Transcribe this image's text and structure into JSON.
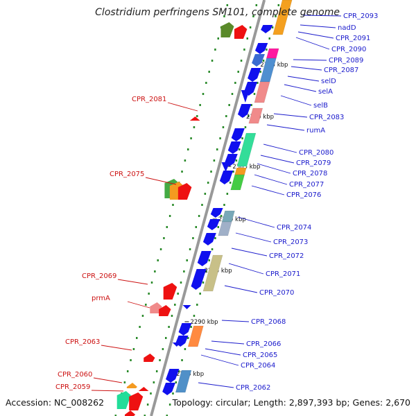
{
  "title": "Clostridium perfringens SM101, complete genome",
  "accession": "Accession: NC_008262",
  "topology": "Topology: circular; Length: 2,897,393 bp; Genes: 2,670",
  "colors": {
    "forward_label": "#1a1acc",
    "reverse_label": "#cc1111",
    "backbone": "#999999",
    "forward_gene": "#1010ee",
    "reverse_gene": "#ee1111",
    "dots": "#2a8a2a"
  },
  "kbp_marks": [
    {
      "text": "2315 kbp",
      "bp": 2315000
    },
    {
      "text": "2310 kbp",
      "bp": 2310000
    },
    {
      "text": "2305 kbp",
      "bp": 2305000
    },
    {
      "text": "2300 kbp",
      "bp": 2300000
    },
    {
      "text": "2295 kbp",
      "bp": 2295000
    },
    {
      "text": "2290 kbp",
      "bp": 2290000
    },
    {
      "text": "2285 kbp",
      "bp": 2285000
    }
  ],
  "forward_genes": [
    {
      "name": "CPR_2093"
    },
    {
      "name": "nadD"
    },
    {
      "name": "CPR_2091"
    },
    {
      "name": "CPR_2090"
    },
    {
      "name": "CPR_2089"
    },
    {
      "name": "CPR_2087"
    },
    {
      "name": "selD"
    },
    {
      "name": "selA"
    },
    {
      "name": "selB"
    },
    {
      "name": "CPR_2083"
    },
    {
      "name": "rumA"
    },
    {
      "name": "CPR_2080"
    },
    {
      "name": "CPR_2079"
    },
    {
      "name": "CPR_2078"
    },
    {
      "name": "CPR_2077"
    },
    {
      "name": "CPR_2076"
    },
    {
      "name": "CPR_2074"
    },
    {
      "name": "CPR_2073"
    },
    {
      "name": "CPR_2072"
    },
    {
      "name": "CPR_2071"
    },
    {
      "name": "CPR_2070"
    },
    {
      "name": "CPR_2068"
    },
    {
      "name": "CPR_2066"
    },
    {
      "name": "CPR_2065"
    },
    {
      "name": "CPR_2064"
    },
    {
      "name": "CPR_2062"
    }
  ],
  "reverse_genes": [
    {
      "name": "CPR_2081"
    },
    {
      "name": "CPR_2075"
    },
    {
      "name": "CPR_2069"
    },
    {
      "name": "prmA"
    },
    {
      "name": "CPR_2063"
    },
    {
      "name": "CPR_2060"
    },
    {
      "name": "CPR_2059"
    }
  ]
}
